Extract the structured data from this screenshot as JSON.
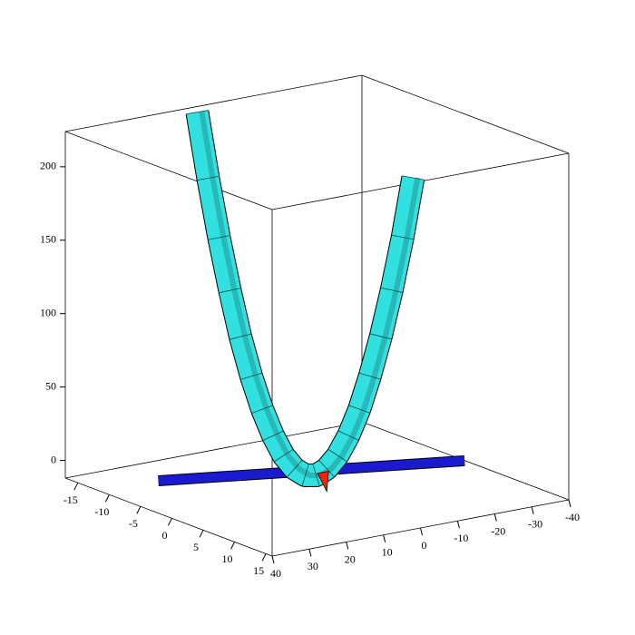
{
  "chart_data": {
    "type": "curve3d",
    "xlim": [
      -17,
      16
    ],
    "ylim": [
      -40,
      40
    ],
    "zlim": [
      -12,
      224
    ],
    "xticks": [
      -15,
      -10,
      -5,
      0,
      5,
      10,
      15
    ],
    "yticks": [
      40,
      30,
      20,
      10,
      0,
      -10,
      -20,
      -30,
      -40
    ],
    "zticks": [
      0,
      50,
      100,
      150,
      200
    ],
    "series": [
      {
        "kind": "ribbon",
        "color": "#1a1ad0",
        "x": [
          -6.3,
          4.4
        ],
        "y": [
          33,
          -31.5
        ],
        "z": [
          0,
          0
        ]
      },
      {
        "kind": "tube",
        "color": "#33e0e0",
        "x": [
          -15,
          -13.5,
          -12,
          -10.5,
          -9,
          -7.5,
          -6,
          -4.5,
          -3,
          -1.5,
          0,
          1.5,
          3,
          4.5,
          6,
          7.5,
          9,
          10.5,
          12,
          13.5,
          15
        ],
        "y": [
          7.8,
          7.4,
          7,
          6.6,
          6.3,
          5.9,
          5.5,
          5.1,
          4.8,
          4.4,
          4,
          3.6,
          3.3,
          2.9,
          2.5,
          2.1,
          1.8,
          1.4,
          1,
          0.6,
          0.3
        ],
        "z": [
          225,
          182.25,
          144,
          110.25,
          81,
          56.25,
          36,
          20.25,
          9,
          2.25,
          0,
          2.25,
          9,
          20.25,
          36,
          56.25,
          81,
          110.25,
          144,
          182.25,
          225
        ]
      },
      {
        "kind": "cone",
        "color": "#ff2000",
        "x": [
          1.5
        ],
        "y": [
          1.5
        ],
        "z": [
          -6
        ]
      }
    ]
  }
}
